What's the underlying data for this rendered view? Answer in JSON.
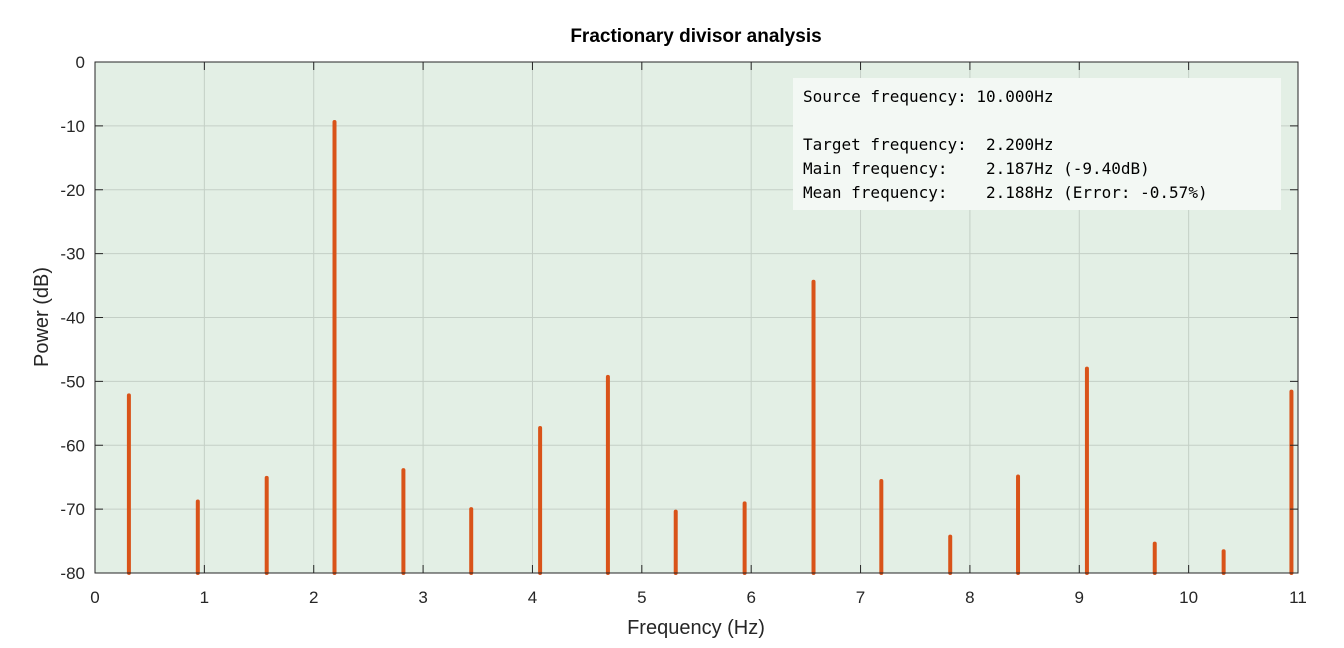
{
  "chart_data": {
    "type": "bar",
    "title": "Fractionary divisor analysis",
    "xlabel": "Frequency (Hz)",
    "ylabel": "Power (dB)",
    "xlim": [
      0,
      11
    ],
    "ylim": [
      -80,
      0
    ],
    "xticks": [
      "0",
      "1",
      "2",
      "3",
      "4",
      "5",
      "6",
      "7",
      "8",
      "9",
      "10",
      "11"
    ],
    "yticks": [
      "0",
      "-10",
      "-20",
      "-30",
      "-40",
      "-50",
      "-60",
      "-70",
      "-80"
    ],
    "grid": true,
    "background_color": "#e3efe5",
    "series": [
      {
        "color": "#d95319",
        "x": [
          0.31,
          0.94,
          1.57,
          2.19,
          2.82,
          3.44,
          4.07,
          4.69,
          5.31,
          5.94,
          6.57,
          7.19,
          7.82,
          8.44,
          9.07,
          9.69,
          10.32,
          10.94
        ],
        "values": [
          -52.2,
          -68.8,
          -65.1,
          -9.4,
          -63.9,
          -70.0,
          -57.3,
          -49.3,
          -70.4,
          -69.1,
          -34.4,
          -65.6,
          -74.3,
          -64.9,
          -48.0,
          -75.4,
          -76.6,
          -51.6
        ]
      }
    ],
    "annotation": {
      "lines": [
        "Source frequency: 10.000Hz",
        "",
        "Target frequency:  2.200Hz",
        "Main frequency:    2.187Hz (-9.40dB)",
        "Mean frequency:    2.188Hz (Error: -0.57%)"
      ],
      "background_color": "#f3f8f4"
    }
  }
}
